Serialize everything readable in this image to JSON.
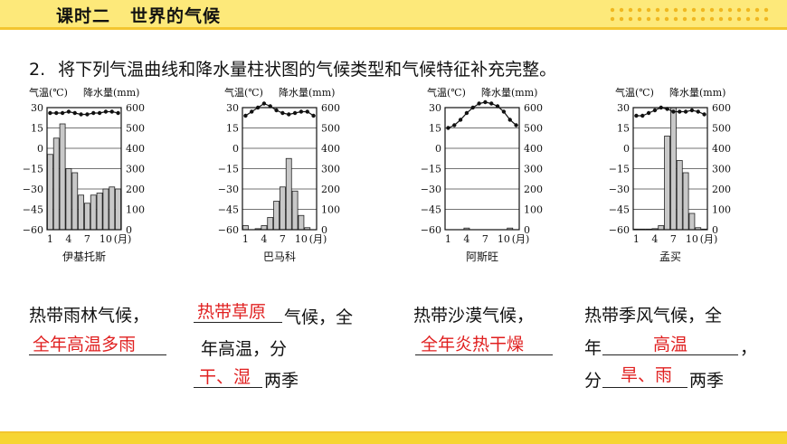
{
  "header": {
    "lesson": "课时二",
    "topic": "世界的气候"
  },
  "question": {
    "number": "2.",
    "text": "将下列气温曲线和降水量柱状图的气候类型和气候特征补充完整。"
  },
  "chart_data": [
    {
      "type": "bar+line",
      "title": "伊基托斯",
      "temp_label": "气温(℃)",
      "precip_label": "降水量(mm)",
      "temp_axis": {
        "ticks": [
          "30",
          "15",
          "0",
          "−15",
          "−30",
          "−45",
          "−60"
        ],
        "range": [
          -60,
          30
        ]
      },
      "precip_axis": {
        "ticks": [
          "600",
          "500",
          "400",
          "300",
          "200",
          "100",
          "0"
        ],
        "range": [
          0,
          600
        ]
      },
      "x_ticks": [
        "1",
        "4",
        "7",
        "10"
      ],
      "x_unit": "(月)",
      "months": [
        1,
        2,
        3,
        4,
        5,
        6,
        7,
        8,
        9,
        10,
        11,
        12
      ],
      "temperature": [
        26,
        26,
        26,
        27,
        26,
        25,
        25,
        26,
        26,
        27,
        27,
        26
      ],
      "precipitation": [
        370,
        450,
        520,
        300,
        280,
        170,
        130,
        170,
        180,
        200,
        210,
        200
      ]
    },
    {
      "type": "bar+line",
      "title": "巴马科",
      "temp_label": "气温(℃)",
      "precip_label": "降水量(mm)",
      "temp_axis": {
        "ticks": [
          "30",
          "15",
          "0",
          "−15",
          "−30",
          "−45",
          "−60"
        ],
        "range": [
          -60,
          30
        ]
      },
      "precip_axis": {
        "ticks": [
          "600",
          "500",
          "400",
          "300",
          "200",
          "100",
          "0"
        ],
        "range": [
          0,
          600
        ]
      },
      "x_ticks": [
        "1",
        "4",
        "7",
        "10"
      ],
      "x_unit": "(月)",
      "months": [
        1,
        2,
        3,
        4,
        5,
        6,
        7,
        8,
        9,
        10,
        11,
        12
      ],
      "temperature": [
        24,
        27,
        30,
        33,
        31,
        28,
        26,
        25,
        26,
        27,
        27,
        24
      ],
      "precipitation": [
        20,
        0,
        5,
        20,
        60,
        140,
        210,
        350,
        190,
        70,
        10,
        0
      ]
    },
    {
      "type": "bar+line",
      "title": "阿斯旺",
      "temp_label": "气温(℃)",
      "precip_label": "降水量(mm)",
      "temp_axis": {
        "ticks": [
          "30",
          "15",
          "0",
          "−15",
          "−30",
          "−45",
          "−60"
        ],
        "range": [
          -60,
          30
        ]
      },
      "precip_axis": {
        "ticks": [
          "600",
          "500",
          "400",
          "300",
          "200",
          "100",
          "0"
        ],
        "range": [
          0,
          600
        ]
      },
      "x_ticks": [
        "1",
        "4",
        "7",
        "10"
      ],
      "x_unit": "(月)",
      "months": [
        1,
        2,
        3,
        4,
        5,
        6,
        7,
        8,
        9,
        10,
        11,
        12
      ],
      "temperature": [
        15,
        17,
        21,
        26,
        30,
        33,
        34,
        33,
        31,
        27,
        21,
        17
      ],
      "precipitation": [
        0,
        0,
        0,
        8,
        0,
        0,
        0,
        0,
        0,
        0,
        8,
        0
      ]
    },
    {
      "type": "bar+line",
      "title": "孟买",
      "temp_label": "气温(℃)",
      "precip_label": "降水量(mm)",
      "temp_axis": {
        "ticks": [
          "30",
          "15",
          "0",
          "−15",
          "−30",
          "−45",
          "−60"
        ],
        "range": [
          -60,
          30
        ]
      },
      "precip_axis": {
        "ticks": [
          "600",
          "500",
          "400",
          "300",
          "200",
          "100",
          "0"
        ],
        "range": [
          0,
          600
        ]
      },
      "x_ticks": [
        "1",
        "4",
        "7",
        "10"
      ],
      "x_unit": "(月)",
      "months": [
        1,
        2,
        3,
        4,
        5,
        6,
        7,
        8,
        9,
        10,
        11,
        12
      ],
      "temperature": [
        24,
        24,
        26,
        28,
        30,
        29,
        27,
        27,
        27,
        28,
        27,
        25
      ],
      "precipitation": [
        3,
        3,
        3,
        5,
        20,
        460,
        620,
        340,
        280,
        80,
        10,
        3
      ]
    }
  ],
  "answers": {
    "a1": {
      "type": "热带雨林气候，",
      "blank": "全年高温多雨"
    },
    "a2": {
      "blank1": "热带草原",
      "after1": "气候，全",
      "line2": "年高温，分",
      "blank2": "干、湿",
      "after2": "两季"
    },
    "a3": {
      "type": "热带沙漠气候，",
      "blank": "全年炎热干燥"
    },
    "a4": {
      "type": "热带季风气候，全",
      "prefix2": "年",
      "blank1": "高温",
      "after1": "，",
      "prefix3": "分",
      "blank2": "旱、雨",
      "after2": "两季"
    }
  }
}
